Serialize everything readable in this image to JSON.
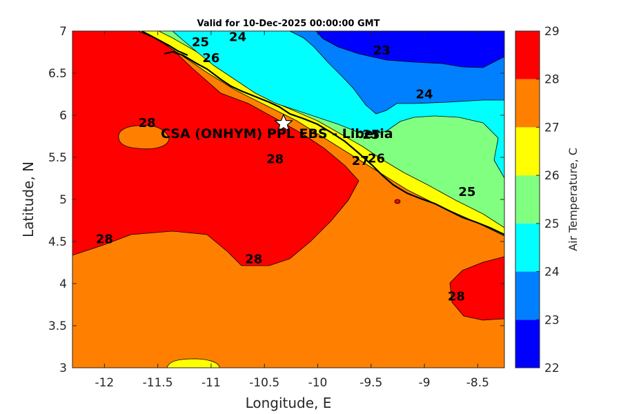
{
  "title": "Valid for 10-Dec-2025 00:00:00 GMT",
  "map": {
    "site_label": "CSA (ONHYM) PPL EBS  - Liberia",
    "site_marker": "star-icon",
    "x_axis": {
      "label": "Longitude, E",
      "ticks": [
        "-12",
        "-11.5",
        "-11",
        "-10.5",
        "-10",
        "-9.5",
        "-9",
        "-8.5"
      ]
    },
    "y_axis": {
      "label": "Latitude, N",
      "ticks": [
        "3",
        "3.5",
        "4",
        "4.5",
        "5",
        "5.5",
        "6",
        "6.5",
        "7"
      ]
    },
    "contour_labels": [
      "25",
      "24",
      "23",
      "26",
      "24",
      "28",
      "25",
      "26",
      "28",
      "27",
      "25",
      "28",
      "28",
      "28"
    ]
  },
  "colorbar": {
    "label": "Air Temperature, C",
    "ticks": [
      "22",
      "23",
      "24",
      "25",
      "26",
      "27",
      "28",
      "29"
    ],
    "colors": [
      "#0000ff",
      "#0080ff",
      "#00ffff",
      "#80ff80",
      "#ffff00",
      "#ff8000",
      "#ff0000",
      "#800000"
    ]
  },
  "chart_data": {
    "type": "heatmap",
    "title": "Valid for 10-Dec-2025 00:00:00 GMT",
    "xlabel": "Longitude, E",
    "ylabel": "Latitude, N",
    "xlim": [
      -12.3,
      -8.25
    ],
    "ylim": [
      3,
      7
    ],
    "x_ticks": [
      -12,
      -11.5,
      -11,
      -10.5,
      -10,
      -9.5,
      -9,
      -8.5
    ],
    "y_ticks": [
      3,
      3.5,
      4,
      4.5,
      5,
      5.5,
      6,
      6.5,
      7
    ],
    "colorbar": {
      "label": "Air Temperature, C",
      "range": [
        22,
        29
      ],
      "levels": [
        22,
        23,
        24,
        25,
        26,
        27,
        28,
        29
      ]
    },
    "site": {
      "name": "CSA (ONHYM) PPL EBS  - Liberia",
      "lon": -10.3,
      "lat": 5.92
    },
    "contour_labels": [
      {
        "text": "25",
        "lon": -11.1,
        "lat": 6.82
      },
      {
        "text": "24",
        "lon": -10.75,
        "lat": 6.88
      },
      {
        "text": "23",
        "lon": -9.4,
        "lat": 6.72
      },
      {
        "text": "26",
        "lon": -11.0,
        "lat": 6.63
      },
      {
        "text": "24",
        "lon": -9.0,
        "lat": 6.2
      },
      {
        "text": "28",
        "lon": -11.6,
        "lat": 5.86
      },
      {
        "text": "25",
        "lon": -9.5,
        "lat": 5.72
      },
      {
        "text": "26",
        "lon": -9.45,
        "lat": 5.44
      },
      {
        "text": "28",
        "lon": -10.4,
        "lat": 5.43
      },
      {
        "text": "27",
        "lon": -9.6,
        "lat": 5.41
      },
      {
        "text": "25",
        "lon": -8.6,
        "lat": 5.04
      },
      {
        "text": "28",
        "lon": -12.0,
        "lat": 4.48
      },
      {
        "text": "28",
        "lon": -10.6,
        "lat": 4.24
      },
      {
        "text": "28",
        "lon": -8.7,
        "lat": 3.8
      }
    ]
  }
}
